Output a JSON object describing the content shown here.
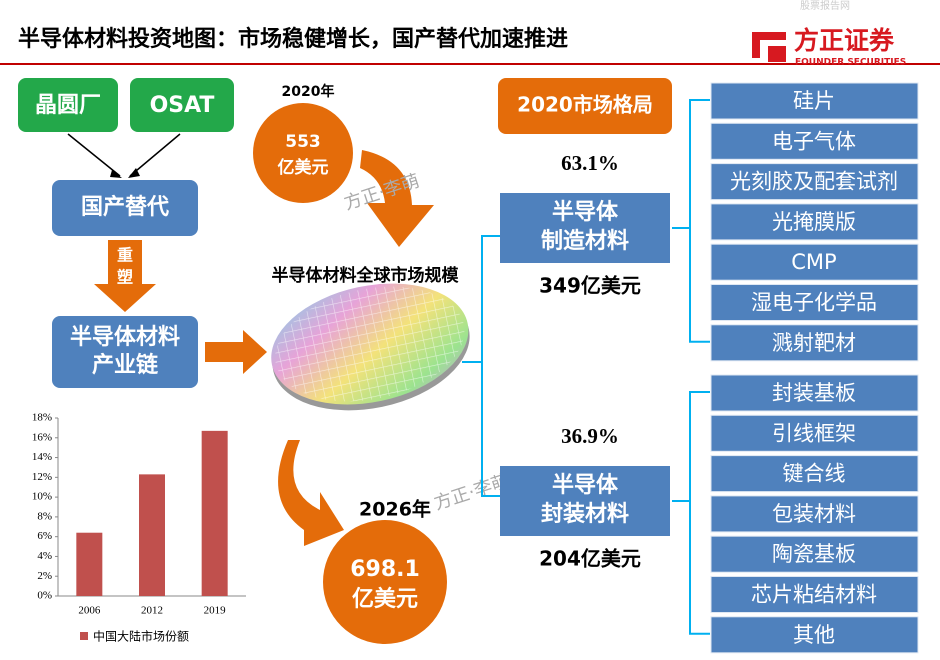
{
  "watermark_top": "股票报告网",
  "header": {
    "title": "半导体材料投资地图：市场稳健增长，国产替代加速推进",
    "logo": "方正证券",
    "logo_en": "FOUNDER SECURITIES"
  },
  "flow": {
    "fab": "晶圆厂",
    "osat": "OSAT",
    "substitution": "国产替代",
    "reshape": [
      "重",
      "塑"
    ],
    "industry_chain": [
      "半导体材料",
      "产业链"
    ]
  },
  "market": {
    "year_2020": "2020年",
    "size_2020": [
      "553",
      "亿美元"
    ],
    "caption": "半导体材料全球市场规模",
    "year_2026": "2026年",
    "size_2026": [
      "698.1",
      "亿美元"
    ]
  },
  "watermarks": [
    "方正·李萌",
    "方正·李萌"
  ],
  "landscape": {
    "title": "2020市场格局",
    "manufacturing": {
      "share": "63.1%",
      "label": [
        "半导体",
        "制造材料"
      ],
      "size": "349亿美元",
      "items": [
        "硅片",
        "电子气体",
        "光刻胶及配套试剂",
        "光掩膜版",
        "CMP",
        "湿电子化学品",
        "溅射靶材"
      ]
    },
    "packaging": {
      "share": "36.9%",
      "label": [
        "半导体",
        "封装材料"
      ],
      "size": "204亿美元",
      "items": [
        "封装基板",
        "引线框架",
        "键合线",
        "包装材料",
        "陶瓷基板",
        "芯片粘结材料",
        "其他"
      ]
    }
  },
  "chart_data": {
    "type": "bar",
    "categories": [
      "2006",
      "2012",
      "2019"
    ],
    "series": [
      {
        "name": "中国大陆市场份额",
        "color": "#c0504d",
        "values": [
          6.4,
          12.3,
          16.7
        ]
      }
    ],
    "ylim": [
      0,
      18
    ],
    "yticks": [
      {
        "value": 0,
        "label": "0%"
      },
      {
        "value": 2,
        "label": "2%"
      },
      {
        "value": 4,
        "label": "4%"
      },
      {
        "value": 6,
        "label": "6%"
      },
      {
        "value": 8,
        "label": "8%"
      },
      {
        "value": 10,
        "label": "10%"
      },
      {
        "value": 12,
        "label": "12%"
      },
      {
        "value": 14,
        "label": "14%"
      },
      {
        "value": 16,
        "label": "16%"
      },
      {
        "value": 18,
        "label": "18%"
      }
    ]
  }
}
